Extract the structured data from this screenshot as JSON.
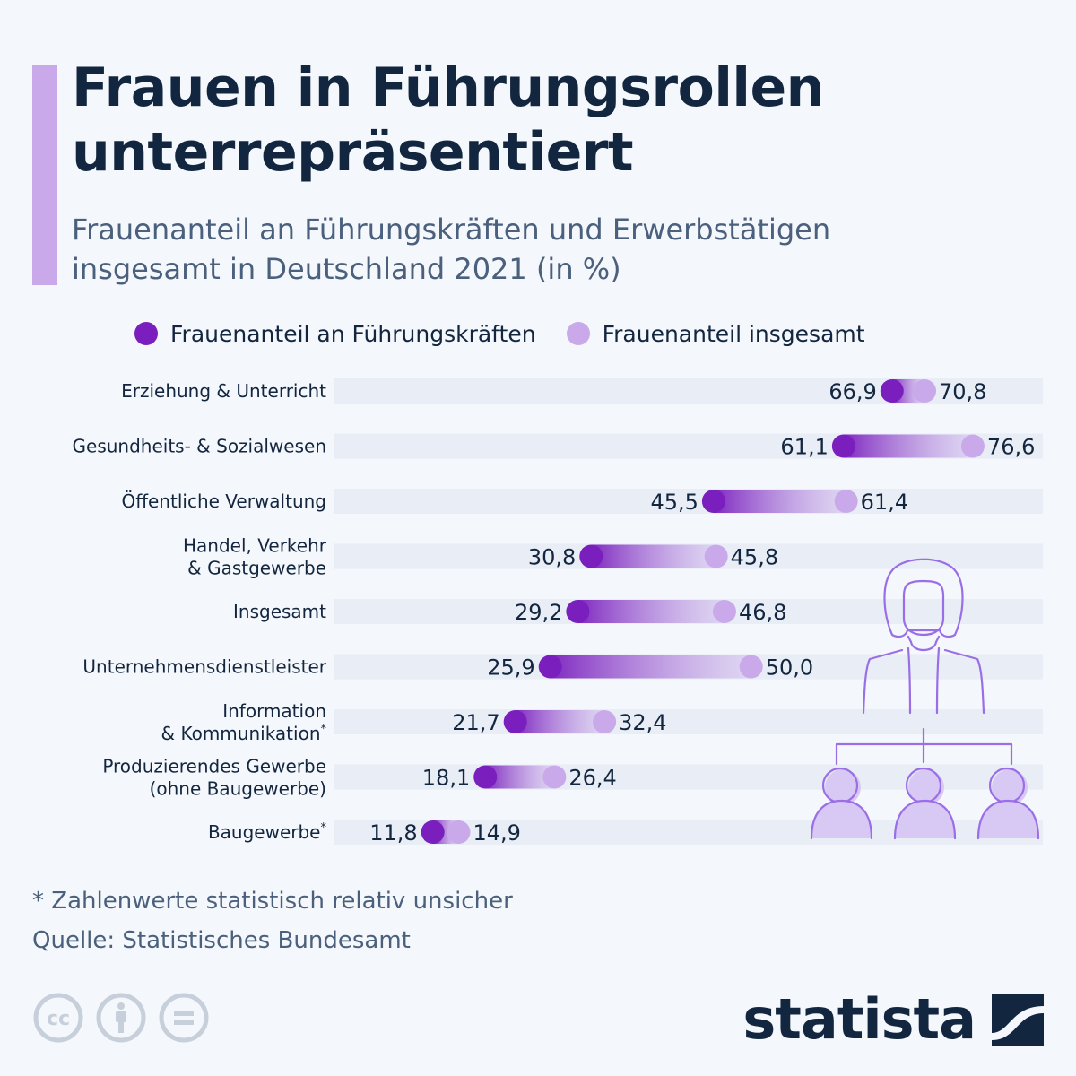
{
  "header": {
    "title_line1": "Frauen in Führungsrollen",
    "title_line2": "unterrepräsentiert",
    "subtitle_line1": "Frauenanteil an Führungskräften und Erwerbstätigen",
    "subtitle_line2": "insgesamt in Deutschland 2021 (in %)"
  },
  "legend": [
    {
      "label": "Frauenanteil an Führungskräften",
      "color": "#7a1fbd"
    },
    {
      "label": "Frauenanteil insgesamt",
      "color": "#c9a9ea"
    }
  ],
  "chart_data": {
    "type": "dumbbell",
    "title": "Frauen in Führungsrollen unterrepräsentiert",
    "subtitle": "Frauenanteil an Führungskräften und Erwerbstätigen insgesamt in Deutschland 2021 (in %)",
    "xlim": [
      0,
      85
    ],
    "grid": false,
    "legend_position": "top",
    "categories": [
      [
        "Erziehung & Unterricht"
      ],
      [
        "Gesundheits- & Sozialwesen"
      ],
      [
        "Öffentliche Verwaltung"
      ],
      [
        "Handel, Verkehr",
        "& Gastgewerbe"
      ],
      [
        "Insgesamt"
      ],
      [
        "Unternehmensdienstleister"
      ],
      [
        "Information",
        "& Kommunikation*"
      ],
      [
        "Produzierendes Gewerbe",
        "(ohne Baugewerbe)"
      ],
      [
        "Baugewerbe*"
      ]
    ],
    "series": [
      {
        "name": "Frauenanteil an Führungskräften",
        "color": "#7a1fbd",
        "values": [
          66.9,
          61.1,
          45.5,
          30.8,
          29.2,
          25.9,
          21.7,
          18.1,
          11.8
        ],
        "labels": [
          "66,9",
          "61,1",
          "45,5",
          "30,8",
          "29,2",
          "25,9",
          "21,7",
          "18,1",
          "11,8"
        ]
      },
      {
        "name": "Frauenanteil insgesamt",
        "color": "#c9a9ea",
        "values": [
          70.8,
          76.6,
          61.4,
          45.8,
          46.8,
          50.0,
          32.4,
          26.4,
          14.9
        ],
        "labels": [
          "70,8",
          "76,6",
          "61,4",
          "45,8",
          "46,8",
          "50,0",
          "32,4",
          "26,4",
          "14,9"
        ]
      }
    ]
  },
  "footer": {
    "footnote": "* Zahlenwerte statistisch relativ unsicher",
    "source": "Quelle: Statistisches Bundesamt",
    "license_icons": [
      "cc-icon",
      "attribution-icon",
      "no-derivatives-icon"
    ],
    "brand": "statista"
  }
}
